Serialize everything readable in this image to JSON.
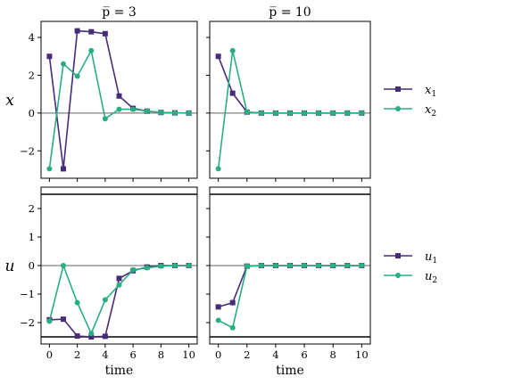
{
  "chart_data": {
    "type": "line",
    "colors": {
      "series1": "#472c7a",
      "series2": "#29af7f",
      "zero_line": "#808080",
      "bound_line": "#000000"
    },
    "panels": [
      {
        "id": "x-pbar3",
        "title": "p̅ = 3",
        "ylabel": "x",
        "xlabel": "",
        "xlim": [
          -0.6,
          10.6
        ],
        "ylim": [
          -3.45,
          4.85
        ],
        "xticks": [
          0,
          2,
          4,
          6,
          8,
          10
        ],
        "yticks": [
          -2,
          0,
          2,
          4
        ],
        "hlines": [
          {
            "y": 0,
            "role": "zero"
          }
        ],
        "series": [
          {
            "name": "x1",
            "marker": "square",
            "x": [
              0,
              1,
              2,
              3,
              4,
              5,
              6,
              7,
              8,
              9,
              10
            ],
            "y": [
              3.0,
              -2.95,
              4.35,
              4.3,
              4.2,
              0.9,
              0.25,
              0.1,
              0.03,
              0.01,
              0.0
            ]
          },
          {
            "name": "x2",
            "marker": "circle",
            "x": [
              0,
              1,
              2,
              3,
              4,
              5,
              6,
              7,
              8,
              9,
              10
            ],
            "y": [
              -2.95,
              2.6,
              1.95,
              3.3,
              -0.3,
              0.2,
              0.2,
              0.1,
              0.03,
              0.01,
              0.0
            ]
          }
        ]
      },
      {
        "id": "x-pbar10",
        "title": "p̅ = 10",
        "ylabel": "",
        "xlabel": "",
        "xlim": [
          -0.6,
          10.6
        ],
        "ylim": [
          -3.45,
          4.85
        ],
        "xticks": [
          0,
          2,
          4,
          6,
          8,
          10
        ],
        "yticks": [
          -2,
          0,
          2,
          4
        ],
        "hlines": [
          {
            "y": 0,
            "role": "zero"
          }
        ],
        "series": [
          {
            "name": "x1",
            "marker": "square",
            "x": [
              0,
              1,
              2,
              3,
              4,
              5,
              6,
              7,
              8,
              9,
              10
            ],
            "y": [
              3.0,
              1.05,
              0.05,
              0.0,
              0.0,
              0.0,
              0.0,
              0.0,
              0.0,
              0.0,
              0.0
            ]
          },
          {
            "name": "x2",
            "marker": "circle",
            "x": [
              0,
              1,
              2,
              3,
              4,
              5,
              6,
              7,
              8,
              9,
              10
            ],
            "y": [
              -2.95,
              3.3,
              0.05,
              0.0,
              0.0,
              0.0,
              0.0,
              0.0,
              0.0,
              0.0,
              0.0
            ]
          }
        ]
      },
      {
        "id": "u-pbar3",
        "title": "",
        "ylabel": "u",
        "xlabel": "time",
        "xlim": [
          -0.6,
          10.6
        ],
        "ylim": [
          -2.75,
          2.75
        ],
        "xticks": [
          0,
          2,
          4,
          6,
          8,
          10
        ],
        "yticks": [
          -2,
          -1,
          0,
          1,
          2
        ],
        "hlines": [
          {
            "y": 0,
            "role": "zero"
          },
          {
            "y": 2.5,
            "role": "bound"
          },
          {
            "y": -2.5,
            "role": "bound"
          }
        ],
        "series": [
          {
            "name": "u1",
            "marker": "square",
            "x": [
              0,
              1,
              2,
              3,
              4,
              5,
              6,
              7,
              8,
              9,
              10
            ],
            "y": [
              -1.9,
              -1.88,
              -2.47,
              -2.5,
              -2.48,
              -0.45,
              -0.18,
              -0.05,
              0.0,
              0.0,
              0.0
            ]
          },
          {
            "name": "u2",
            "marker": "circle",
            "x": [
              0,
              1,
              2,
              3,
              4,
              5,
              6,
              7,
              8,
              9,
              10
            ],
            "y": [
              -1.95,
              0.0,
              -1.3,
              -2.38,
              -1.2,
              -0.68,
              -0.15,
              -0.08,
              -0.02,
              0.0,
              0.0
            ]
          }
        ]
      },
      {
        "id": "u-pbar10",
        "title": "",
        "ylabel": "",
        "xlabel": "time",
        "xlim": [
          -0.6,
          10.6
        ],
        "ylim": [
          -2.75,
          2.75
        ],
        "xticks": [
          0,
          2,
          4,
          6,
          8,
          10
        ],
        "yticks": [
          -2,
          -1,
          0,
          1,
          2
        ],
        "hlines": [
          {
            "y": 0,
            "role": "zero"
          },
          {
            "y": 2.5,
            "role": "bound"
          },
          {
            "y": -2.5,
            "role": "bound"
          }
        ],
        "series": [
          {
            "name": "u1",
            "marker": "square",
            "x": [
              0,
              1,
              2,
              3,
              4,
              5,
              6,
              7,
              8,
              9,
              10
            ],
            "y": [
              -1.45,
              -1.3,
              -0.02,
              0.0,
              0.0,
              0.0,
              0.0,
              0.0,
              0.0,
              0.0,
              0.0
            ]
          },
          {
            "name": "u2",
            "marker": "circle",
            "x": [
              0,
              1,
              2,
              3,
              4,
              5,
              6,
              7,
              8,
              9,
              10
            ],
            "y": [
              -1.92,
              -2.18,
              -0.02,
              0.0,
              0.0,
              0.0,
              0.0,
              0.0,
              0.0,
              0.0,
              0.0
            ]
          }
        ]
      }
    ],
    "legends": [
      {
        "row": "x",
        "placement": "right",
        "entries": [
          {
            "series": "x1",
            "label": "x",
            "sub": "1"
          },
          {
            "series": "x2",
            "label": "x",
            "sub": "2"
          }
        ]
      },
      {
        "row": "u",
        "placement": "right",
        "entries": [
          {
            "series": "u1",
            "label": "u",
            "sub": "1"
          },
          {
            "series": "u2",
            "label": "u",
            "sub": "2"
          }
        ]
      }
    ]
  }
}
